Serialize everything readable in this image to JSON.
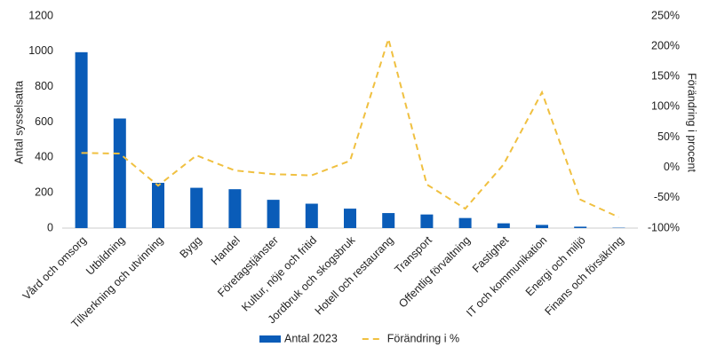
{
  "chart_data": {
    "type": "bar",
    "categories": [
      "Vård och omsorg",
      "Utbildning",
      "Tillverkning och utvinning",
      "Bygg",
      "Handel",
      "Företagstjänster",
      "Kultur, nöje och fritid",
      "Jordbruk och skogsbruk",
      "Hotell och restaurang",
      "Transport",
      "Offentlig förvaltning",
      "Fastighet",
      "IT och kommunikation",
      "Energi och miljö",
      "Finans och försäkring"
    ],
    "series": [
      {
        "name": "Antal 2023",
        "type": "bar",
        "color": "#0a5cb8",
        "values": [
          995,
          620,
          256,
          228,
          220,
          160,
          138,
          110,
          85,
          77,
          57,
          27,
          18,
          8,
          2
        ]
      },
      {
        "name": "Förändring i %",
        "type": "line",
        "axis": "y2",
        "color": "#f0c040",
        "values": [
          24,
          23,
          -30,
          20,
          -5,
          -11,
          -13,
          11,
          212,
          -28,
          -68,
          5,
          124,
          -53,
          -82
        ]
      }
    ],
    "ylabel": "Antal sysselsatta",
    "y2label": "Förändring i procent",
    "ylim": [
      0,
      1200
    ],
    "yticks": [
      0,
      200,
      400,
      600,
      800,
      1000,
      1200
    ],
    "y2lim": [
      -100,
      250
    ],
    "y2ticks": [
      {
        "value": -100,
        "label": "-100%"
      },
      {
        "value": -50,
        "label": "-50%"
      },
      {
        "value": 0,
        "label": "0%"
      },
      {
        "value": 50,
        "label": "50%"
      },
      {
        "value": 100,
        "label": "100%"
      },
      {
        "value": 150,
        "label": "150%"
      },
      {
        "value": 200,
        "label": "200%"
      },
      {
        "value": 250,
        "label": "250%"
      }
    ],
    "grid": false,
    "legend": "bottom"
  }
}
